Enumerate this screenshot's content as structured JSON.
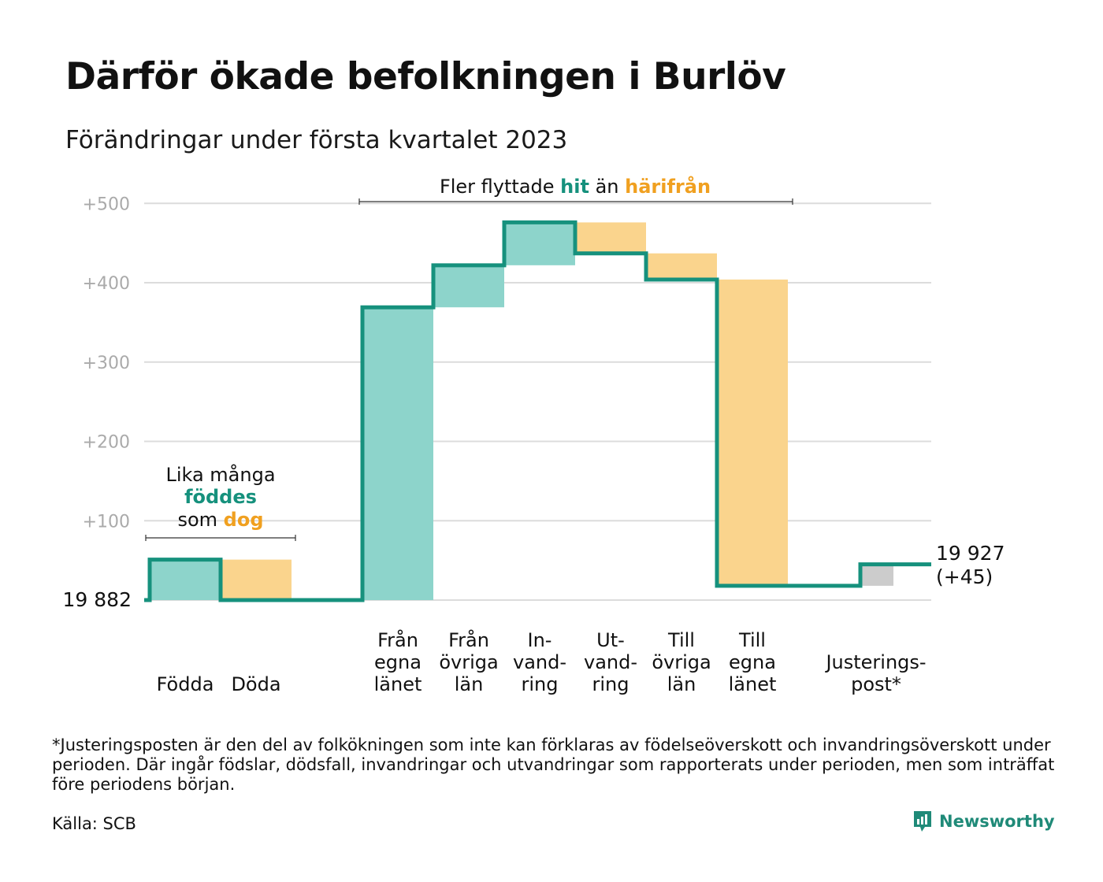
{
  "title": "Därför ökade befolkningen i Burlöv",
  "subtitle": "Förändringar under första kvartalet 2023",
  "colors": {
    "teal_line": "#16917d",
    "teal_fill": "#8dd4cb",
    "orange_fill": "#fad48d",
    "orange_text": "#f0a020",
    "gray_fill": "#cccccc",
    "grid": "#dcdcdc",
    "axis_text": "#aaaaaa"
  },
  "chart_data": {
    "type": "waterfall",
    "start_label": "19 882",
    "end_label": "19 927",
    "end_change_label": "(+45)",
    "ylim": [
      0,
      500
    ],
    "yticks": [
      {
        "value": 100,
        "label": "+100"
      },
      {
        "value": 200,
        "label": "+200"
      },
      {
        "value": 300,
        "label": "+300"
      },
      {
        "value": 400,
        "label": "+400"
      },
      {
        "value": 500,
        "label": "+500"
      }
    ],
    "steps": [
      {
        "label": [
          "Födda"
        ],
        "change": 51,
        "kind": "in"
      },
      {
        "label": [
          "Döda"
        ],
        "change": -51,
        "kind": "out"
      },
      {
        "label": [
          "Från",
          "egna",
          "länet"
        ],
        "change": 369,
        "kind": "in"
      },
      {
        "label": [
          "Från",
          "övriga",
          "län"
        ],
        "change": 53,
        "kind": "in"
      },
      {
        "label": [
          "In-",
          "vand-",
          "ring"
        ],
        "change": 54,
        "kind": "in"
      },
      {
        "label": [
          "Ut-",
          "vand-",
          "ring"
        ],
        "change": -39,
        "kind": "out"
      },
      {
        "label": [
          "Till",
          "övriga",
          "län"
        ],
        "change": -33,
        "kind": "out"
      },
      {
        "label": [
          "Till",
          "egna",
          "länet"
        ],
        "change": -386,
        "kind": "out"
      },
      {
        "label": [
          "Justerings-",
          "post*"
        ],
        "change": 27,
        "kind": "adjust"
      }
    ],
    "annotations": {
      "births": {
        "line1": "Lika många",
        "word_in": "föddes",
        "word_som": "som",
        "word_out": "dog"
      },
      "moves": {
        "prefix": "Fler flyttade",
        "word_in": "hit",
        "middle": "än",
        "word_out": "härifrån"
      }
    }
  },
  "footnote": "*Justeringsposten är den del av folkökningen som inte kan förklaras av födelseöverskott och invandringsöverskott under perioden. Där ingår födslar, dödsfall, invandringar och utvandringar som rapporterats under perioden, men som inträffat före periodens början.",
  "source": "Källa: SCB",
  "brand": {
    "name": "Newsworthy",
    "icon": "newsworthy-logo-icon"
  }
}
